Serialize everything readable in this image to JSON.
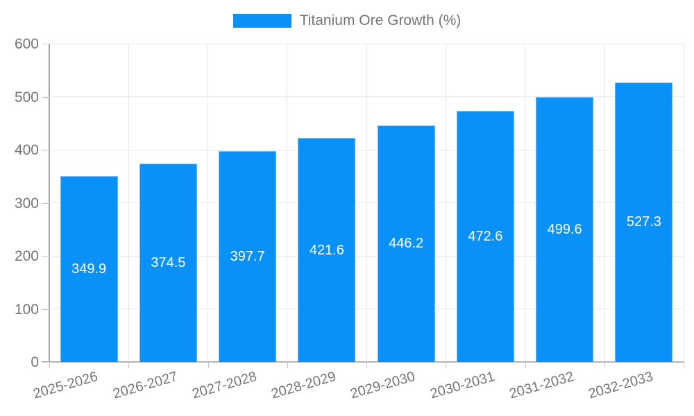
{
  "chart_data": {
    "type": "bar",
    "title": "",
    "xlabel": "",
    "ylabel": "",
    "categories": [
      "2025-2026",
      "2026-2027",
      "2027-2028",
      "2028-2029",
      "2029-2030",
      "2030-2031",
      "2031-2032",
      "2032-2033"
    ],
    "values": [
      349.9,
      374.5,
      397.7,
      421.6,
      446.2,
      472.6,
      499.6,
      527.3
    ],
    "value_labels": [
      "349.9",
      "374.5",
      "397.7",
      "421.6",
      "446.2",
      "472.6",
      "499.6",
      "527.3"
    ],
    "series_name": "Titanium Ore Growth (%)",
    "ylim": [
      0,
      600
    ],
    "ytick_step": 100,
    "ytick_labels": [
      "0",
      "100",
      "200",
      "300",
      "400",
      "500",
      "600"
    ],
    "grid": true,
    "legend_position": "top-center",
    "colors": {
      "bar_fill": "#0a91f8",
      "bar_border": "#6db8fa",
      "value_label_text": "#ffffff",
      "axis_text": "#757575",
      "gridline": "#e6e6e6",
      "axis_line": "#a3a3a3"
    }
  },
  "legend": {
    "label": "Titanium Ore Growth (%)"
  }
}
